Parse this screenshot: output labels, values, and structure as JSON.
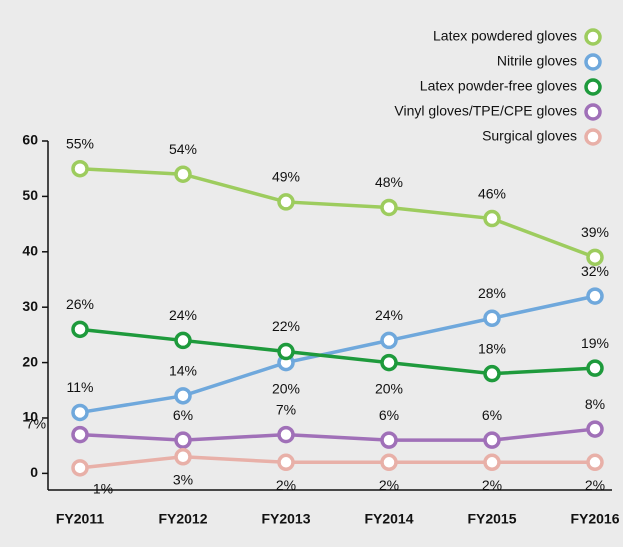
{
  "chart_data": {
    "type": "line",
    "categories": [
      "FY2011",
      "FY2012",
      "FY2013",
      "FY2014",
      "FY2015",
      "FY2016"
    ],
    "series": [
      {
        "name": "Latex powdered gloves",
        "color": "#9dcc5e",
        "values": [
          55,
          54,
          49,
          48,
          46,
          39
        ],
        "value_labels": [
          "55%",
          "54%",
          "49%",
          "48%",
          "46%",
          "39%"
        ]
      },
      {
        "name": "Nitrile gloves",
        "color": "#6fa8dc",
        "values": [
          11,
          14,
          20,
          24,
          28,
          32
        ],
        "value_labels": [
          "11%",
          "14%",
          "20%",
          "24%",
          "28%",
          "32%"
        ]
      },
      {
        "name": "Latex powder-free gloves",
        "color": "#1e9a3c",
        "values": [
          26,
          24,
          22,
          20,
          18,
          19
        ],
        "value_labels": [
          "26%",
          "24%",
          "22%",
          "20%",
          "18%",
          "19%"
        ]
      },
      {
        "name": "Vinyl gloves/TPE/CPE gloves",
        "color": "#a070b8",
        "values": [
          7,
          6,
          7,
          6,
          6,
          8
        ],
        "value_labels": [
          "7%",
          "6%",
          "7%",
          "6%",
          "6%",
          "8%"
        ]
      },
      {
        "name": "Surgical gloves",
        "color": "#e8b0a8",
        "values": [
          1,
          3,
          2,
          2,
          2,
          2
        ],
        "value_labels": [
          "1%",
          "3%",
          "2%",
          "2%",
          "2%",
          "2%"
        ]
      }
    ],
    "ylim": [
      -3,
      60
    ],
    "yticks": [
      0,
      10,
      20,
      30,
      40,
      50,
      60
    ],
    "legend": "top-right"
  }
}
